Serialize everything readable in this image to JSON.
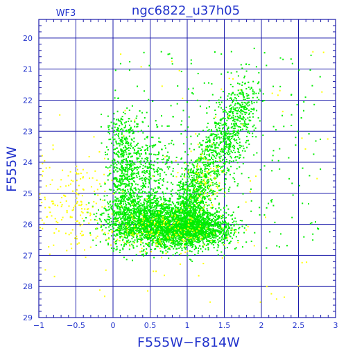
{
  "chart_data": {
    "type": "scatter",
    "title": "ngc6822_u37h05",
    "subtitle": "WF3",
    "xlabel": "F555W−F814W",
    "ylabel": "F555W",
    "xlim": [
      -1,
      3
    ],
    "ylim": [
      29,
      19.4
    ],
    "y_inverted": true,
    "grid": true,
    "x_ticks": [
      {
        "value": -1,
        "label": "−1"
      },
      {
        "value": -0.5,
        "label": "−0.5"
      },
      {
        "value": 0,
        "label": "0"
      },
      {
        "value": 0.5,
        "label": "0.5"
      },
      {
        "value": 1,
        "label": "1"
      },
      {
        "value": 1.5,
        "label": "1.5"
      },
      {
        "value": 2,
        "label": "2"
      },
      {
        "value": 2.5,
        "label": "2.5"
      },
      {
        "value": 3,
        "label": "3"
      }
    ],
    "y_ticks": [
      {
        "value": 20,
        "label": "20"
      },
      {
        "value": 21,
        "label": "21"
      },
      {
        "value": 22,
        "label": "22"
      },
      {
        "value": 23,
        "label": "23"
      },
      {
        "value": 24,
        "label": "24"
      },
      {
        "value": 25,
        "label": "25"
      },
      {
        "value": 26,
        "label": "26"
      },
      {
        "value": 27,
        "label": "27"
      },
      {
        "value": 28,
        "label": "28"
      },
      {
        "value": 29,
        "label": "29"
      }
    ],
    "series": [
      {
        "color": "#00ee00",
        "regions": [
          {
            "kind": "gauss",
            "n": 1300,
            "x": 0.45,
            "y": 25.8,
            "sx": 0.28,
            "sy": 0.45
          },
          {
            "kind": "gauss",
            "n": 1500,
            "x": 0.85,
            "y": 26.15,
            "sx": 0.3,
            "sy": 0.3
          },
          {
            "kind": "gauss",
            "n": 600,
            "x": 1.22,
            "y": 26.1,
            "sx": 0.22,
            "sy": 0.3
          },
          {
            "kind": "band",
            "n": 1000,
            "x0": 1.05,
            "y0": 25.2,
            "x1": 1.85,
            "y1": 22.0,
            "w": 0.1,
            "h": 0.6
          },
          {
            "kind": "gauss",
            "n": 500,
            "x": 1.05,
            "y": 25.4,
            "sx": 0.1,
            "sy": 0.6
          },
          {
            "kind": "band",
            "n": 550,
            "x0": 0.15,
            "y0": 26.4,
            "x1": 0.1,
            "y1": 22.6,
            "w": 0.1,
            "h": 0.3
          },
          {
            "kind": "gauss",
            "n": 350,
            "x": 0.4,
            "y": 24.1,
            "sx": 0.2,
            "sy": 0.6
          },
          {
            "kind": "uniform",
            "n": 260,
            "x0": 0.0,
            "x1": 2.8,
            "y0": 20.4,
            "y1": 26.8
          }
        ]
      },
      {
        "color": "#ffff00",
        "regions": [
          {
            "kind": "gauss",
            "n": 170,
            "x": 0.6,
            "y": 26.2,
            "sx": 0.4,
            "sy": 0.35
          },
          {
            "kind": "gauss",
            "n": 80,
            "x": 1.2,
            "y": 24.6,
            "sx": 0.14,
            "sy": 0.5
          },
          {
            "kind": "gauss",
            "n": 170,
            "x": -0.55,
            "y": 25.3,
            "sx": 0.28,
            "sy": 0.75
          },
          {
            "kind": "uniform",
            "n": 90,
            "x0": -1.0,
            "x1": 2.9,
            "y0": 20.2,
            "y1": 28.7
          }
        ]
      }
    ]
  }
}
